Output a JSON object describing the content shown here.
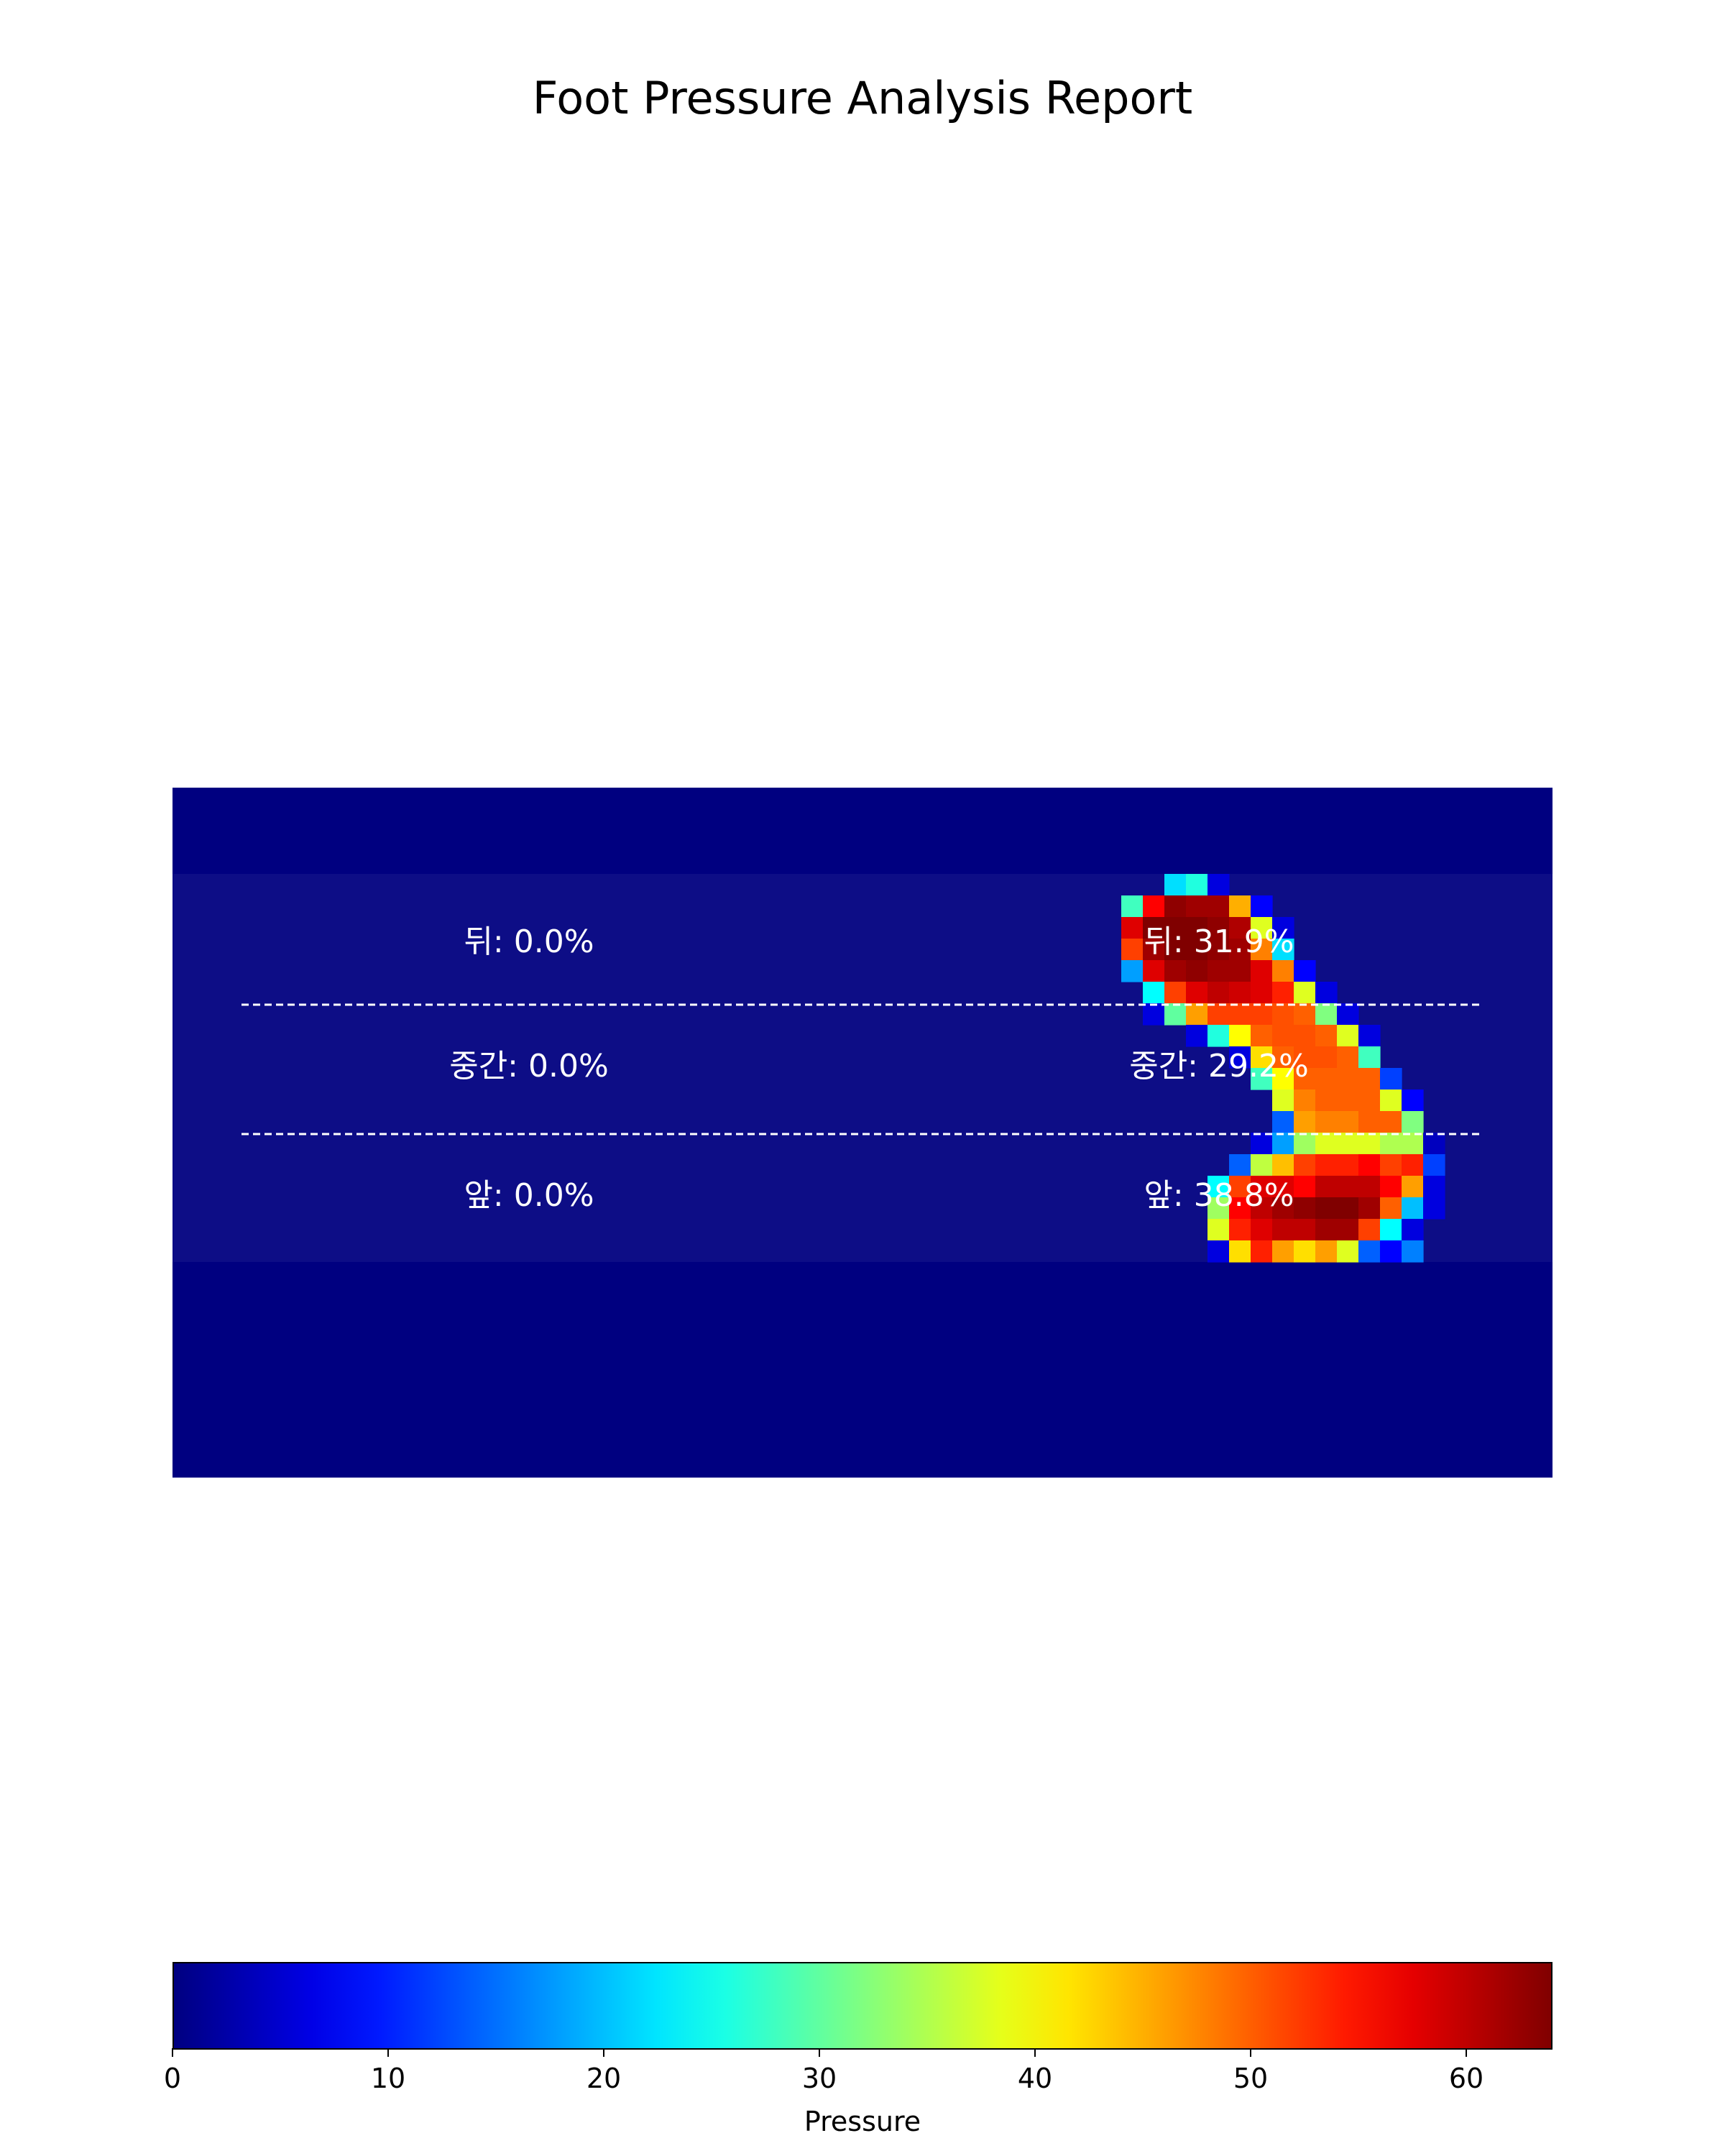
{
  "title": "Foot Pressure Analysis Report",
  "chart_data": {
    "type": "heatmap",
    "title": "Foot Pressure Analysis Report",
    "grid_cols": 64,
    "grid_rows": 32,
    "background_value": 0,
    "colormap": "jet",
    "colorbar": {
      "label": "Pressure",
      "min": 0,
      "max": 64,
      "ticks": [
        0,
        10,
        20,
        30,
        40,
        50,
        60
      ],
      "tick_labels": [
        "0",
        "10",
        "20",
        "30",
        "40",
        "50",
        "60"
      ]
    },
    "cells": [
      {
        "row": 4,
        "col": 46,
        "v": 22
      },
      {
        "row": 4,
        "col": 47,
        "v": 26
      },
      {
        "row": 4,
        "col": 48,
        "v": 6
      },
      {
        "row": 5,
        "col": 44,
        "v": 28
      },
      {
        "row": 5,
        "col": 45,
        "v": 56
      },
      {
        "row": 5,
        "col": 46,
        "v": 63
      },
      {
        "row": 5,
        "col": 47,
        "v": 62
      },
      {
        "row": 5,
        "col": 48,
        "v": 62
      },
      {
        "row": 5,
        "col": 49,
        "v": 45
      },
      {
        "row": 5,
        "col": 50,
        "v": 8
      },
      {
        "row": 6,
        "col": 44,
        "v": 58
      },
      {
        "row": 6,
        "col": 45,
        "v": 64
      },
      {
        "row": 6,
        "col": 46,
        "v": 64
      },
      {
        "row": 6,
        "col": 47,
        "v": 64
      },
      {
        "row": 6,
        "col": 48,
        "v": 63
      },
      {
        "row": 6,
        "col": 49,
        "v": 61
      },
      {
        "row": 6,
        "col": 50,
        "v": 38
      },
      {
        "row": 6,
        "col": 51,
        "v": 6
      },
      {
        "row": 7,
        "col": 44,
        "v": 52
      },
      {
        "row": 7,
        "col": 45,
        "v": 62
      },
      {
        "row": 7,
        "col": 46,
        "v": 64
      },
      {
        "row": 7,
        "col": 47,
        "v": 64
      },
      {
        "row": 7,
        "col": 48,
        "v": 63
      },
      {
        "row": 7,
        "col": 49,
        "v": 62
      },
      {
        "row": 7,
        "col": 50,
        "v": 48
      },
      {
        "row": 7,
        "col": 51,
        "v": 22
      },
      {
        "row": 8,
        "col": 44,
        "v": 18
      },
      {
        "row": 8,
        "col": 45,
        "v": 58
      },
      {
        "row": 8,
        "col": 46,
        "v": 62
      },
      {
        "row": 8,
        "col": 47,
        "v": 63
      },
      {
        "row": 8,
        "col": 48,
        "v": 62
      },
      {
        "row": 8,
        "col": 49,
        "v": 62
      },
      {
        "row": 8,
        "col": 50,
        "v": 58
      },
      {
        "row": 8,
        "col": 51,
        "v": 48
      },
      {
        "row": 8,
        "col": 52,
        "v": 8
      },
      {
        "row": 9,
        "col": 45,
        "v": 24
      },
      {
        "row": 9,
        "col": 46,
        "v": 52
      },
      {
        "row": 9,
        "col": 47,
        "v": 58
      },
      {
        "row": 9,
        "col": 48,
        "v": 60
      },
      {
        "row": 9,
        "col": 49,
        "v": 59
      },
      {
        "row": 9,
        "col": 50,
        "v": 58
      },
      {
        "row": 9,
        "col": 51,
        "v": 54
      },
      {
        "row": 9,
        "col": 52,
        "v": 38
      },
      {
        "row": 9,
        "col": 53,
        "v": 6
      },
      {
        "row": 10,
        "col": 45,
        "v": 6
      },
      {
        "row": 10,
        "col": 46,
        "v": 30
      },
      {
        "row": 10,
        "col": 47,
        "v": 46
      },
      {
        "row": 10,
        "col": 48,
        "v": 52
      },
      {
        "row": 10,
        "col": 49,
        "v": 52
      },
      {
        "row": 10,
        "col": 50,
        "v": 52
      },
      {
        "row": 10,
        "col": 51,
        "v": 51
      },
      {
        "row": 10,
        "col": 52,
        "v": 50
      },
      {
        "row": 10,
        "col": 53,
        "v": 32
      },
      {
        "row": 10,
        "col": 54,
        "v": 6
      },
      {
        "row": 11,
        "col": 47,
        "v": 6
      },
      {
        "row": 11,
        "col": 48,
        "v": 26
      },
      {
        "row": 11,
        "col": 49,
        "v": 40
      },
      {
        "row": 11,
        "col": 50,
        "v": 50
      },
      {
        "row": 11,
        "col": 51,
        "v": 51
      },
      {
        "row": 11,
        "col": 52,
        "v": 51
      },
      {
        "row": 11,
        "col": 53,
        "v": 50
      },
      {
        "row": 11,
        "col": 54,
        "v": 38
      },
      {
        "row": 11,
        "col": 55,
        "v": 6
      },
      {
        "row": 12,
        "col": 49,
        "v": 6
      },
      {
        "row": 12,
        "col": 50,
        "v": 42
      },
      {
        "row": 12,
        "col": 51,
        "v": 50
      },
      {
        "row": 12,
        "col": 52,
        "v": 51
      },
      {
        "row": 12,
        "col": 53,
        "v": 51
      },
      {
        "row": 12,
        "col": 54,
        "v": 50
      },
      {
        "row": 12,
        "col": 55,
        "v": 28
      },
      {
        "row": 13,
        "col": 50,
        "v": 28
      },
      {
        "row": 13,
        "col": 51,
        "v": 40
      },
      {
        "row": 13,
        "col": 52,
        "v": 50
      },
      {
        "row": 13,
        "col": 53,
        "v": 50
      },
      {
        "row": 13,
        "col": 54,
        "v": 50
      },
      {
        "row": 13,
        "col": 55,
        "v": 50
      },
      {
        "row": 13,
        "col": 56,
        "v": 12
      },
      {
        "row": 14,
        "col": 51,
        "v": 38
      },
      {
        "row": 14,
        "col": 52,
        "v": 48
      },
      {
        "row": 14,
        "col": 53,
        "v": 50
      },
      {
        "row": 14,
        "col": 54,
        "v": 50
      },
      {
        "row": 14,
        "col": 55,
        "v": 50
      },
      {
        "row": 14,
        "col": 56,
        "v": 38
      },
      {
        "row": 14,
        "col": 57,
        "v": 8
      },
      {
        "row": 15,
        "col": 51,
        "v": 14
      },
      {
        "row": 15,
        "col": 52,
        "v": 46
      },
      {
        "row": 15,
        "col": 53,
        "v": 48
      },
      {
        "row": 15,
        "col": 54,
        "v": 48
      },
      {
        "row": 15,
        "col": 55,
        "v": 50
      },
      {
        "row": 15,
        "col": 56,
        "v": 50
      },
      {
        "row": 15,
        "col": 57,
        "v": 32
      },
      {
        "row": 16,
        "col": 50,
        "v": 6
      },
      {
        "row": 16,
        "col": 51,
        "v": 18
      },
      {
        "row": 16,
        "col": 52,
        "v": 34
      },
      {
        "row": 16,
        "col": 53,
        "v": 38
      },
      {
        "row": 16,
        "col": 54,
        "v": 38
      },
      {
        "row": 16,
        "col": 55,
        "v": 38
      },
      {
        "row": 16,
        "col": 56,
        "v": 35
      },
      {
        "row": 16,
        "col": 57,
        "v": 35
      },
      {
        "row": 16,
        "col": 58,
        "v": 4
      },
      {
        "row": 17,
        "col": 49,
        "v": 14
      },
      {
        "row": 17,
        "col": 50,
        "v": 36
      },
      {
        "row": 17,
        "col": 51,
        "v": 44
      },
      {
        "row": 17,
        "col": 52,
        "v": 52
      },
      {
        "row": 17,
        "col": 53,
        "v": 54
      },
      {
        "row": 17,
        "col": 54,
        "v": 54
      },
      {
        "row": 17,
        "col": 55,
        "v": 56
      },
      {
        "row": 17,
        "col": 56,
        "v": 52
      },
      {
        "row": 17,
        "col": 57,
        "v": 54
      },
      {
        "row": 17,
        "col": 58,
        "v": 12
      },
      {
        "row": 18,
        "col": 48,
        "v": 24
      },
      {
        "row": 18,
        "col": 49,
        "v": 52
      },
      {
        "row": 18,
        "col": 50,
        "v": 58
      },
      {
        "row": 18,
        "col": 51,
        "v": 58
      },
      {
        "row": 18,
        "col": 52,
        "v": 56
      },
      {
        "row": 18,
        "col": 53,
        "v": 60
      },
      {
        "row": 18,
        "col": 54,
        "v": 60
      },
      {
        "row": 18,
        "col": 55,
        "v": 60
      },
      {
        "row": 18,
        "col": 56,
        "v": 56
      },
      {
        "row": 18,
        "col": 57,
        "v": 46
      },
      {
        "row": 18,
        "col": 58,
        "v": 6
      },
      {
        "row": 19,
        "col": 48,
        "v": 34
      },
      {
        "row": 19,
        "col": 49,
        "v": 56
      },
      {
        "row": 19,
        "col": 50,
        "v": 60
      },
      {
        "row": 19,
        "col": 51,
        "v": 62
      },
      {
        "row": 19,
        "col": 52,
        "v": 63
      },
      {
        "row": 19,
        "col": 53,
        "v": 64
      },
      {
        "row": 19,
        "col": 54,
        "v": 64
      },
      {
        "row": 19,
        "col": 55,
        "v": 62
      },
      {
        "row": 19,
        "col": 56,
        "v": 50
      },
      {
        "row": 19,
        "col": 57,
        "v": 20
      },
      {
        "row": 19,
        "col": 58,
        "v": 6
      },
      {
        "row": 20,
        "col": 48,
        "v": 38
      },
      {
        "row": 20,
        "col": 49,
        "v": 54
      },
      {
        "row": 20,
        "col": 50,
        "v": 58
      },
      {
        "row": 20,
        "col": 51,
        "v": 60
      },
      {
        "row": 20,
        "col": 52,
        "v": 60
      },
      {
        "row": 20,
        "col": 53,
        "v": 62
      },
      {
        "row": 20,
        "col": 54,
        "v": 62
      },
      {
        "row": 20,
        "col": 55,
        "v": 52
      },
      {
        "row": 20,
        "col": 56,
        "v": 24
      },
      {
        "row": 20,
        "col": 57,
        "v": 6
      },
      {
        "row": 21,
        "col": 48,
        "v": 6
      },
      {
        "row": 21,
        "col": 49,
        "v": 42
      },
      {
        "row": 21,
        "col": 50,
        "v": 54
      },
      {
        "row": 21,
        "col": 51,
        "v": 46
      },
      {
        "row": 21,
        "col": 52,
        "v": 42
      },
      {
        "row": 21,
        "col": 53,
        "v": 46
      },
      {
        "row": 21,
        "col": 54,
        "v": 38
      },
      {
        "row": 21,
        "col": 55,
        "v": 14
      },
      {
        "row": 21,
        "col": 56,
        "v": 8
      },
      {
        "row": 21,
        "col": 57,
        "v": 16
      }
    ],
    "foot_region_rows": [
      4,
      21
    ],
    "zone_boundaries_rows": [
      10,
      16
    ],
    "zones_left": [
      {
        "label": "뒤: 0.0%"
      },
      {
        "label": "중간: 0.0%"
      },
      {
        "label": "앞: 0.0%"
      }
    ],
    "zones_right": [
      {
        "label": "뒤: 31.9%"
      },
      {
        "label": "중간: 29.2%"
      },
      {
        "label": "앞: 38.8%"
      }
    ]
  }
}
